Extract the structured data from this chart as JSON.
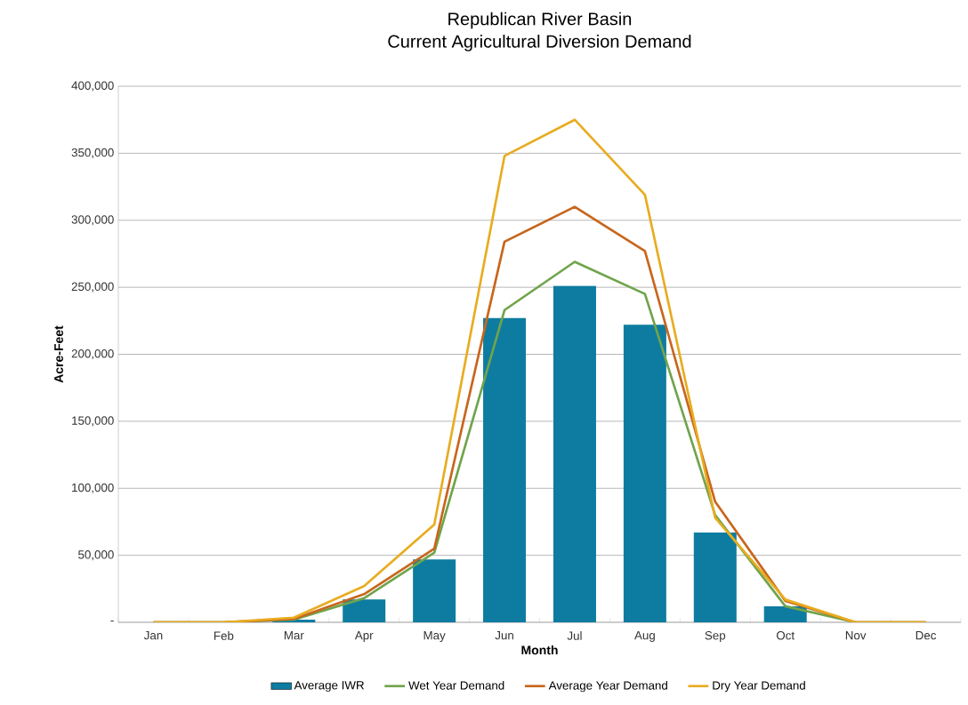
{
  "chart_data": {
    "type": "line",
    "title": "Republican River Basin",
    "subtitle": "Current Agricultural Diversion Demand",
    "xlabel": "Month",
    "ylabel": "Acre-Feet",
    "categories": [
      "Jan",
      "Feb",
      "Mar",
      "Apr",
      "May",
      "Jun",
      "Jul",
      "Aug",
      "Sep",
      "Oct",
      "Nov",
      "Dec"
    ],
    "series": [
      {
        "name": "Average IWR",
        "type": "bar",
        "color": "#0e7ca0",
        "values": [
          0,
          0,
          2000,
          17000,
          47000,
          227000,
          251000,
          222000,
          67000,
          12000,
          0,
          0
        ]
      },
      {
        "name": "Wet Year Demand",
        "color": "#70a44c",
        "values": [
          0,
          0,
          2000,
          18000,
          52000,
          233000,
          269000,
          245000,
          80000,
          12000,
          0,
          0
        ]
      },
      {
        "name": "Average Year Demand",
        "color": "#c8661c",
        "values": [
          0,
          0,
          2500,
          21000,
          55000,
          284000,
          310000,
          277000,
          90000,
          16000,
          0,
          0
        ]
      },
      {
        "name": "Dry Year Demand",
        "color": "#e8ac20",
        "values": [
          0,
          0,
          3500,
          27000,
          73000,
          348000,
          375000,
          319000,
          78000,
          17000,
          0,
          0
        ]
      }
    ],
    "ylim": [
      0,
      400000
    ],
    "yticks": [
      {
        "value": 0,
        "label": "-"
      },
      {
        "value": 50000,
        "label": "50,000"
      },
      {
        "value": 100000,
        "label": "100,000"
      },
      {
        "value": 150000,
        "label": "150,000"
      },
      {
        "value": 200000,
        "label": "200,000"
      },
      {
        "value": 250000,
        "label": "250,000"
      },
      {
        "value": 300000,
        "label": "300,000"
      },
      {
        "value": 350000,
        "label": "350,000"
      },
      {
        "value": 400000,
        "label": "400,000"
      }
    ],
    "grid": "y",
    "legend": "bottom",
    "line_style": "solid",
    "marker": "none"
  }
}
